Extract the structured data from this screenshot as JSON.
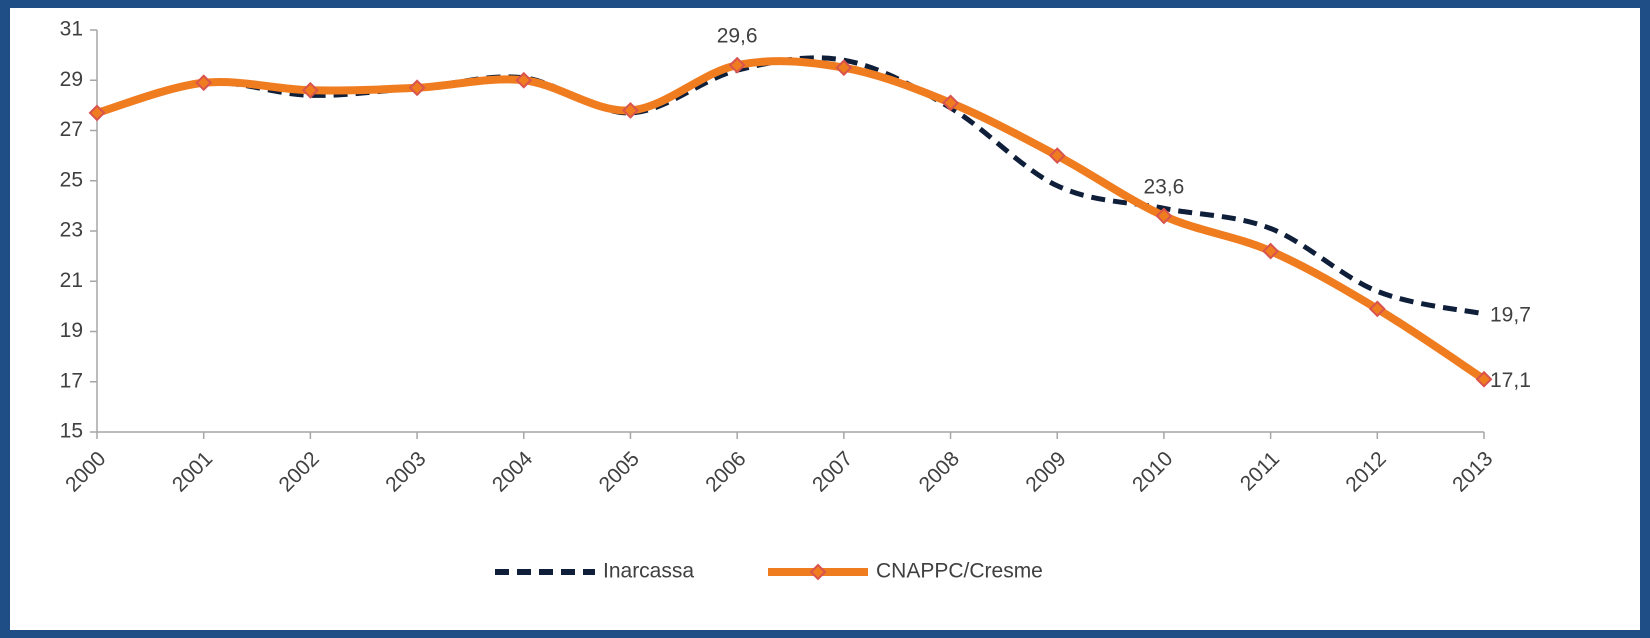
{
  "chart_data": {
    "type": "line",
    "categories": [
      "2000",
      "2001",
      "2002",
      "2003",
      "2004",
      "2005",
      "2006",
      "2007",
      "2008",
      "2009",
      "2010",
      "2011",
      "2012",
      "2013"
    ],
    "series": [
      {
        "name": "Inarcassa",
        "color": "#0f1f3a",
        "dashed": true,
        "values": [
          27.7,
          28.9,
          28.4,
          28.7,
          29.1,
          27.7,
          29.4,
          29.8,
          27.9,
          24.8,
          23.9,
          23.1,
          20.6,
          19.7
        ],
        "value_labels": [
          null,
          null,
          null,
          null,
          null,
          null,
          null,
          null,
          null,
          null,
          null,
          null,
          null,
          "19,7"
        ]
      },
      {
        "name": "CNAPPC/Cresme",
        "color": "#f07c20",
        "marker_color": "#d9534f",
        "values": [
          27.7,
          28.9,
          28.6,
          28.7,
          29.0,
          27.8,
          29.6,
          29.5,
          28.1,
          26.0,
          23.6,
          22.2,
          19.9,
          17.1
        ],
        "value_labels": [
          null,
          null,
          null,
          null,
          null,
          null,
          "29,6",
          null,
          null,
          null,
          "23,6",
          null,
          null,
          "17,1"
        ]
      }
    ],
    "ylim": [
      15,
      31
    ],
    "yticks": [
      15,
      17,
      19,
      21,
      23,
      25,
      27,
      29,
      31
    ],
    "smooth": true
  }
}
